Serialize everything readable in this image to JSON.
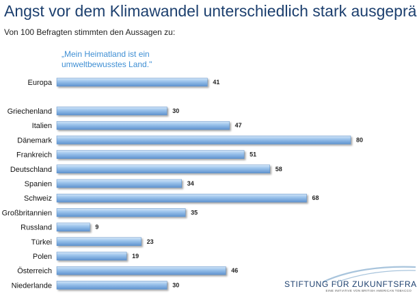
{
  "header": {
    "title": "Angst vor dem Klimawandel unterschiedlich stark ausgeprägt",
    "subtitle": "Von 100 Befragten stimmten den Aussagen zu:"
  },
  "chart_data": {
    "type": "bar",
    "orientation": "horizontal",
    "series_label": "„Mein Heimatland ist ein umweltbewusstes Land.\"",
    "categories": [
      "Europa",
      "Griechenland",
      "Italien",
      "Dänemark",
      "Frankreich",
      "Deutschland",
      "Spanien",
      "Schweiz",
      "Großbritannien",
      "Russland",
      "Türkei",
      "Polen",
      "Österreich",
      "Niederlande"
    ],
    "values": [
      41,
      30,
      47,
      80,
      51,
      58,
      34,
      68,
      35,
      9,
      23,
      19,
      46,
      30
    ],
    "xlim": [
      0,
      80
    ],
    "grid": false,
    "bar_color": "#8ab6e6"
  },
  "branding": {
    "name": "STIFTUNG FÜR ZUKUNFTSFRAGEN",
    "tagline": "EINE INITIATIVE VON BRITISH AMERICAN TOBACCO",
    "swoosh_color": "#a8c4dc"
  }
}
